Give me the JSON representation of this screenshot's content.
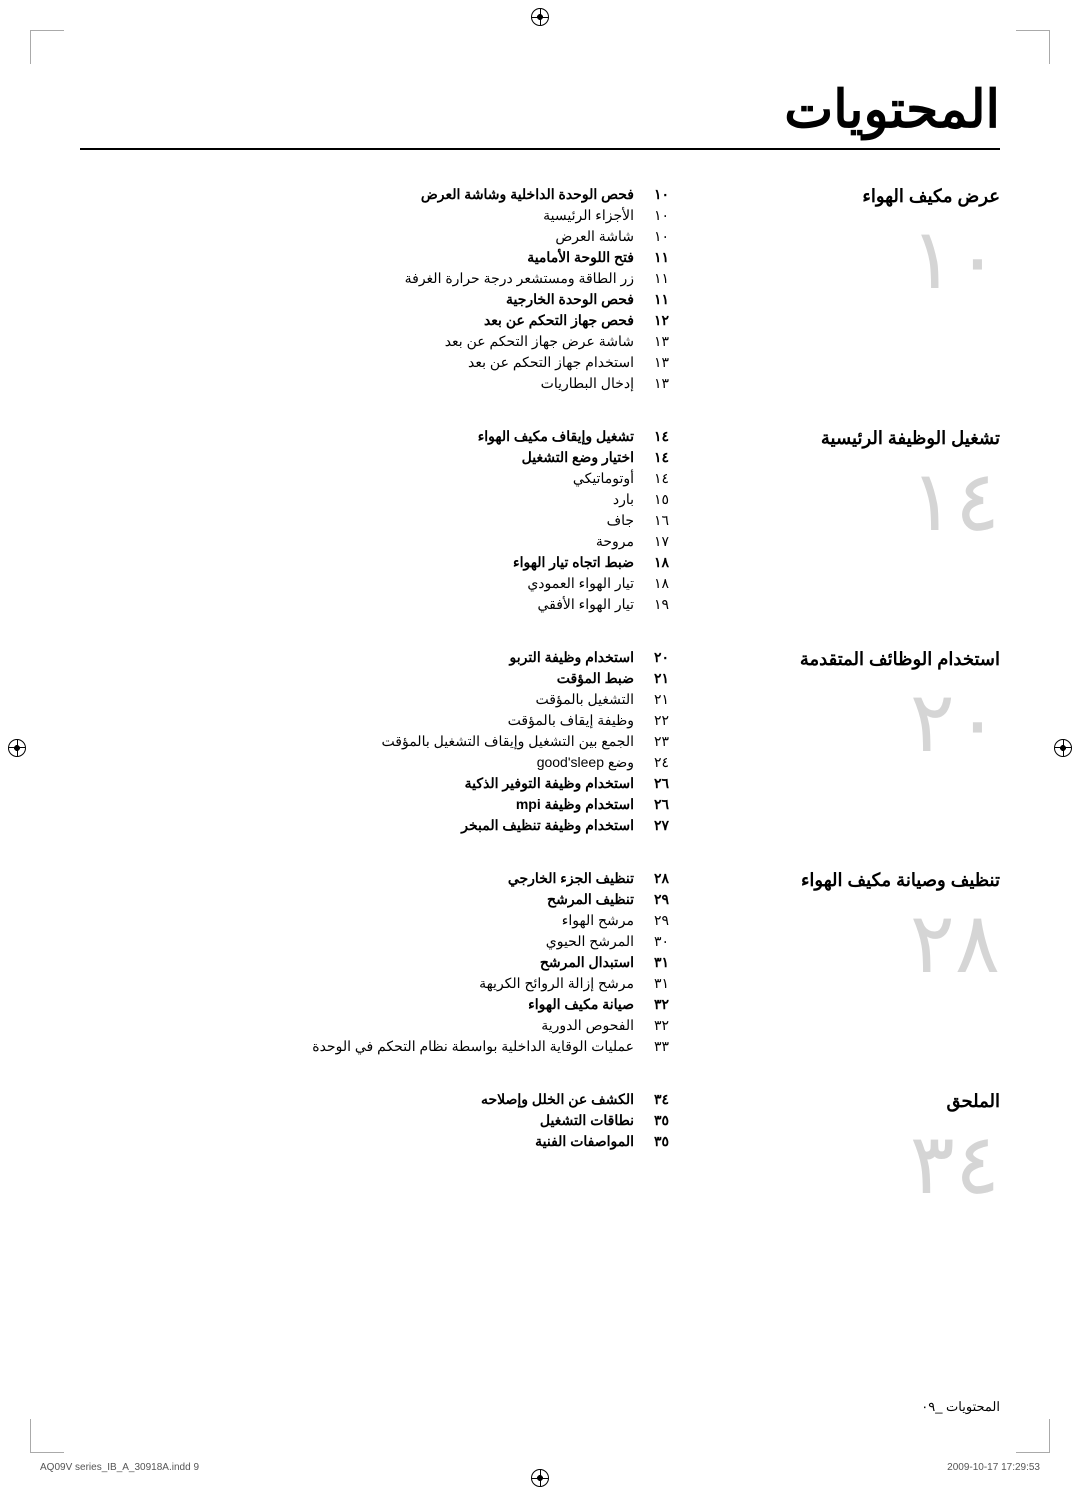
{
  "title": "المحتويات",
  "sections": [
    {
      "title": "عرض مكيف الهواء",
      "big_number": "١٠",
      "items": [
        {
          "page": "١٠",
          "text": "فحص الوحدة الداخلية وشاشة العرض",
          "bold": true
        },
        {
          "page": "١٠",
          "text": "الأجزاء الرئيسية",
          "bold": false
        },
        {
          "page": "١٠",
          "text": "شاشة العرض",
          "bold": false
        },
        {
          "page": "١١",
          "text": "فتح اللوحة الأمامية",
          "bold": true
        },
        {
          "page": "١١",
          "text": "زر الطاقة ومستشعر درجة حرارة الغرفة",
          "bold": false
        },
        {
          "page": "١١",
          "text": "فحص الوحدة الخارجية",
          "bold": true
        },
        {
          "page": "١٢",
          "text": "فحص جهاز التحكم عن بعد",
          "bold": true
        },
        {
          "page": "١٣",
          "text": "شاشة عرض جهاز التحكم عن بعد",
          "bold": false
        },
        {
          "page": "١٣",
          "text": "استخدام جهاز التحكم عن بعد",
          "bold": false
        },
        {
          "page": "١٣",
          "text": "إدخال البطاريات",
          "bold": false
        }
      ]
    },
    {
      "title": "تشغيل الوظيفة الرئيسية",
      "big_number": "١٤",
      "items": [
        {
          "page": "١٤",
          "text": "تشغيل وإيقاف مكيف الهواء",
          "bold": true
        },
        {
          "page": "١٤",
          "text": "اختيار وضع التشغيل",
          "bold": true
        },
        {
          "page": "١٤",
          "text": "أوتوماتيكي",
          "bold": false
        },
        {
          "page": "١٥",
          "text": "بارد",
          "bold": false
        },
        {
          "page": "١٦",
          "text": "جاف",
          "bold": false
        },
        {
          "page": "١٧",
          "text": "مروحة",
          "bold": false
        },
        {
          "page": "١٨",
          "text": "ضبط اتجاه تيار الهواء",
          "bold": true
        },
        {
          "page": "١٨",
          "text": "تيار الهواء العمودي",
          "bold": false
        },
        {
          "page": "١٩",
          "text": "تيار الهواء الأفقي",
          "bold": false
        }
      ]
    },
    {
      "title": "استخدام الوظائف المتقدمة",
      "big_number": "٢٠",
      "items": [
        {
          "page": "٢٠",
          "text": "استخدام وظيفة التربو",
          "bold": true
        },
        {
          "page": "٢١",
          "text": "ضبط المؤقت",
          "bold": true
        },
        {
          "page": "٢١",
          "text": "التشغيل بالمؤقت",
          "bold": false
        },
        {
          "page": "٢٢",
          "text": "وظيفة إيقاف بالمؤقت",
          "bold": false
        },
        {
          "page": "٢٣",
          "text": "الجمع بين التشغيل وإيقاف التشغيل بالمؤقت",
          "bold": false
        },
        {
          "page": "٢٤",
          "text": "وضع good'sleep",
          "bold": false
        },
        {
          "page": "٢٦",
          "text": "استخدام وظيفة التوفير الذكية",
          "bold": true
        },
        {
          "page": "٢٦",
          "text": "استخدام وظيفة mpi",
          "bold": true
        },
        {
          "page": "٢٧",
          "text": "استخدام وظيفة تنظيف المبخر",
          "bold": true
        }
      ]
    },
    {
      "title": "تنظيف وصيانة مكيف الهواء",
      "big_number": "٢٨",
      "items": [
        {
          "page": "٢٨",
          "text": "تنظيف الجزء الخارجي",
          "bold": true
        },
        {
          "page": "٢٩",
          "text": "تنظيف المرشح",
          "bold": true
        },
        {
          "page": "٢٩",
          "text": "مرشح الهواء",
          "bold": false
        },
        {
          "page": "٣٠",
          "text": "المرشح الحيوي",
          "bold": false
        },
        {
          "page": "٣١",
          "text": "استبدال المرشح",
          "bold": true
        },
        {
          "page": "٣١",
          "text": "مرشح إزالة الروائح الكريهة",
          "bold": false
        },
        {
          "page": "٣٢",
          "text": "صيانة مكيف الهواء",
          "bold": true
        },
        {
          "page": "٣٢",
          "text": "الفحوص الدورية",
          "bold": false
        },
        {
          "page": "٣٣",
          "text": "عمليات الوقاية الداخلية بواسطة نظام التحكم في الوحدة",
          "bold": false
        }
      ]
    },
    {
      "title": "الملحق",
      "big_number": "٣٤",
      "items": [
        {
          "page": "٣٤",
          "text": "الكشف عن الخلل وإصلاحه",
          "bold": true
        },
        {
          "page": "٣٥",
          "text": "نطاقات التشغيل",
          "bold": true
        },
        {
          "page": "٣٥",
          "text": "المواصفات الفنية",
          "bold": true
        }
      ]
    }
  ],
  "footer_text": "المحتويات _٠٩",
  "print_left": "AQ09V series_IB_A_30918A.indd   9",
  "print_right": "2009-10-17   17:29:53"
}
